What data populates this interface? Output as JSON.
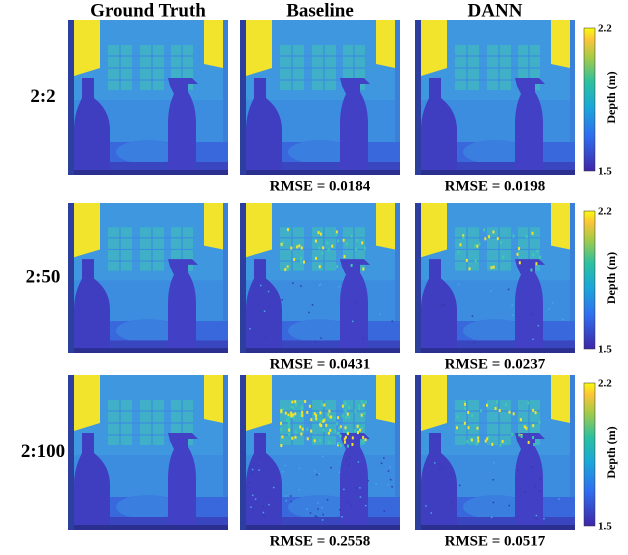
{
  "columns": [
    "Ground Truth",
    "Baseline",
    "DANN"
  ],
  "rows": [
    {
      "label": "2:2",
      "rmse": [
        "RMSE = 0.0184",
        "RMSE = 0.0198"
      ]
    },
    {
      "label": "2:50",
      "rmse": [
        "RMSE = 0.0431",
        "RMSE = 0.0237"
      ]
    },
    {
      "label": "2:100",
      "rmse": [
        "RMSE = 0.2558",
        "RMSE = 0.0517"
      ]
    }
  ],
  "colorbar": {
    "top_label": "2.2",
    "bottom_label": "1.5",
    "title": "Depth (m)"
  }
}
